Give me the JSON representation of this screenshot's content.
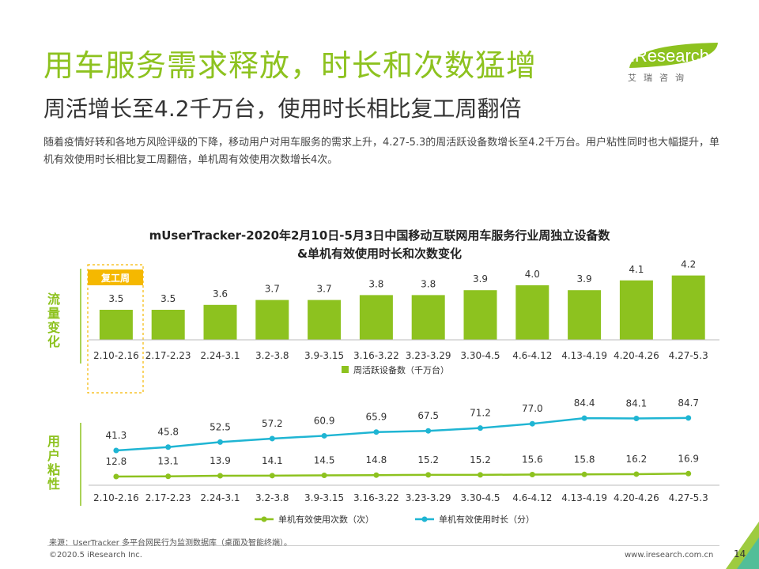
{
  "header": {
    "title": "用车服务需求释放，时长和次数猛增",
    "subtitle": "周活增长至4.2千万台，使用时长相比复工周翻倍",
    "description": "随着疫情好转和各地方风险评级的下降，移动用户对用车服务的需求上升，4.27-5.3的周活跃设备数增长至4.2千万台。用户粘性同时也大幅提升，单机有效使用时长相比复工周翻倍，单机周有效使用次数增长4次。"
  },
  "logo": {
    "text": "iResearch",
    "sub": "艾瑞咨询"
  },
  "chart_title": {
    "line1": "mUserTracker-2020年2月10日-5月3日中国移动互联网用车服务行业周独立设备数",
    "line2": "&单机有效使用时长和次数变化"
  },
  "colors": {
    "accent_green": "#8dc21f",
    "bar_green": "#8dc21f",
    "line_green": "#8dc21f",
    "line_blue": "#1fb5d3",
    "highlight_border": "#f5b800",
    "highlight_fill": "#f5b800",
    "panel_label": "#8dc21f"
  },
  "chart_data": [
    {
      "type": "bar",
      "panel_label": "流量变化",
      "highlight_label": "复工周",
      "categories": [
        "2.10-2.16",
        "2.17-2.23",
        "2.24-3.1",
        "3.2-3.8",
        "3.9-3.15",
        "3.16-3.22",
        "3.23-3.29",
        "3.30-4.5",
        "4.6-4.12",
        "4.13-4.19",
        "4.20-4.26",
        "4.27-5.3"
      ],
      "series": [
        {
          "name": "周活跃设备数（千万台）",
          "values": [
            3.5,
            3.5,
            3.6,
            3.7,
            3.7,
            3.8,
            3.8,
            3.9,
            4.0,
            3.9,
            4.1,
            4.2
          ]
        }
      ],
      "legend_position": "bottom"
    },
    {
      "type": "line",
      "panel_label": "用户粘性",
      "categories": [
        "2.10-2.16",
        "2.17-2.23",
        "2.24-3.1",
        "3.2-3.8",
        "3.9-3.15",
        "3.16-3.22",
        "3.23-3.29",
        "3.30-4.5",
        "4.6-4.12",
        "4.13-4.19",
        "4.20-4.26",
        "4.27-5.3"
      ],
      "series": [
        {
          "name": "单机有效使用次数（次）",
          "values": [
            12.8,
            13.1,
            13.9,
            14.1,
            14.5,
            14.8,
            15.2,
            15.2,
            15.6,
            15.8,
            16.2,
            16.9
          ]
        },
        {
          "name": "单机有效使用时长（分）",
          "values": [
            41.3,
            45.8,
            52.5,
            57.2,
            60.9,
            65.9,
            67.5,
            71.2,
            77.0,
            84.4,
            84.1,
            84.7
          ]
        }
      ],
      "legend_position": "bottom"
    }
  ],
  "footer": {
    "source": "来源：UserTracker 多平台网民行为监测数据库（桌面及智能终端）。",
    "copyright": "©2020.5 iResearch Inc.",
    "website": "www.iresearch.com.cn",
    "page": "14"
  }
}
